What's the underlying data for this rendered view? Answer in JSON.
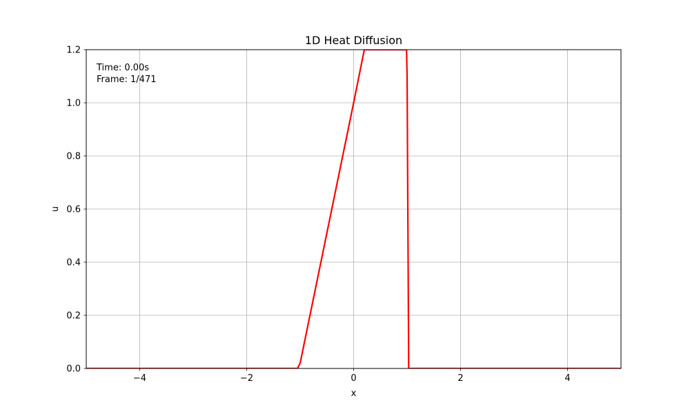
{
  "chart_data": {
    "type": "line",
    "title": "1D Heat Diffusion",
    "xlabel": "x",
    "ylabel": "u",
    "xlim": [
      -5,
      5
    ],
    "ylim": [
      0,
      1.2
    ],
    "xticks": [
      -4,
      -2,
      0,
      2,
      4
    ],
    "xtick_labels": [
      "−4",
      "−2",
      "0",
      "2",
      "4"
    ],
    "yticks": [
      0.0,
      0.2,
      0.4,
      0.6,
      0.8,
      1.0,
      1.2
    ],
    "ytick_labels": [
      "0.0",
      "0.2",
      "0.4",
      "0.6",
      "0.8",
      "1.0",
      "1.2"
    ],
    "grid": true,
    "series": [
      {
        "color": "#ff0000",
        "x": [
          -5.0,
          -1.05,
          -1.0,
          0.0,
          0.2,
          0.99,
          1.0,
          1.03,
          5.0
        ],
        "y": [
          0.0,
          0.0,
          0.02,
          1.0,
          1.2,
          1.2,
          1.1,
          0.0,
          0.0
        ]
      }
    ],
    "annotations": {
      "time": "Time: 0.00s",
      "frame": "Frame: 1/471"
    }
  }
}
